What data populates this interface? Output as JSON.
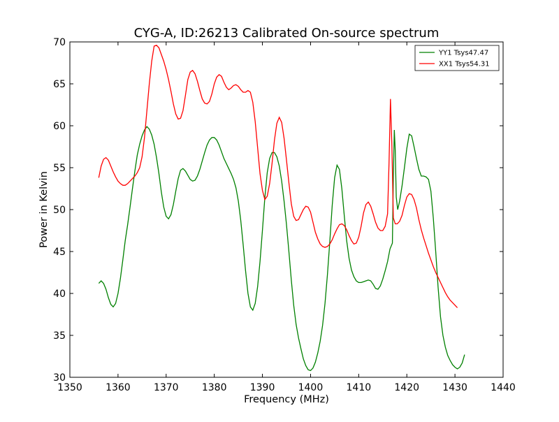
{
  "chart_data": {
    "type": "line",
    "title": "CYG-A, ID:26213 Calibrated On-source spectrum",
    "xlabel": "Frequency (MHz)",
    "ylabel": "Power in Kelvin",
    "xlim": [
      1350,
      1440
    ],
    "ylim": [
      30,
      70
    ],
    "xticks": [
      "1350",
      "1360",
      "1370",
      "1380",
      "1390",
      "1400",
      "1410",
      "1420",
      "1430",
      "1440"
    ],
    "yticks": [
      "30",
      "35",
      "40",
      "45",
      "50",
      "55",
      "60",
      "65",
      "70"
    ],
    "grid": false,
    "legend_position": "top-right",
    "series": [
      {
        "name": "YY1 Tsys47.47",
        "color": "#008000",
        "points": [
          [
            1356,
            41.2
          ],
          [
            1356.5,
            41.5
          ],
          [
            1357,
            41.2
          ],
          [
            1357.5,
            40.5
          ],
          [
            1358,
            39.5
          ],
          [
            1358.5,
            38.7
          ],
          [
            1359,
            38.4
          ],
          [
            1359.5,
            38.8
          ],
          [
            1360,
            40.0
          ],
          [
            1360.5,
            41.8
          ],
          [
            1361,
            44.0
          ],
          [
            1361.5,
            46.3
          ],
          [
            1362,
            48.2
          ],
          [
            1362.5,
            50.3
          ],
          [
            1363,
            52.5
          ],
          [
            1363.5,
            54.6
          ],
          [
            1364,
            56.5
          ],
          [
            1364.5,
            57.8
          ],
          [
            1365,
            58.8
          ],
          [
            1365.5,
            59.5
          ],
          [
            1366,
            59.9
          ],
          [
            1366.5,
            59.6
          ],
          [
            1367,
            58.9
          ],
          [
            1367.5,
            57.8
          ],
          [
            1368,
            56.2
          ],
          [
            1368.5,
            54.3
          ],
          [
            1369,
            52.1
          ],
          [
            1369.5,
            50.3
          ],
          [
            1370,
            49.2
          ],
          [
            1370.5,
            48.9
          ],
          [
            1371,
            49.4
          ],
          [
            1371.5,
            50.6
          ],
          [
            1372,
            52.2
          ],
          [
            1372.5,
            53.7
          ],
          [
            1373,
            54.7
          ],
          [
            1373.5,
            54.9
          ],
          [
            1374,
            54.6
          ],
          [
            1374.5,
            54.1
          ],
          [
            1375,
            53.6
          ],
          [
            1375.5,
            53.4
          ],
          [
            1376,
            53.5
          ],
          [
            1376.5,
            54.0
          ],
          [
            1377,
            54.8
          ],
          [
            1377.5,
            55.8
          ],
          [
            1378,
            56.8
          ],
          [
            1378.5,
            57.7
          ],
          [
            1379,
            58.3
          ],
          [
            1379.5,
            58.6
          ],
          [
            1380,
            58.6
          ],
          [
            1380.5,
            58.3
          ],
          [
            1381,
            57.7
          ],
          [
            1381.5,
            56.9
          ],
          [
            1382,
            56.1
          ],
          [
            1382.5,
            55.5
          ],
          [
            1383,
            54.9
          ],
          [
            1383.5,
            54.3
          ],
          [
            1384,
            53.6
          ],
          [
            1384.5,
            52.6
          ],
          [
            1385,
            51.0
          ],
          [
            1385.5,
            48.7
          ],
          [
            1386,
            45.8
          ],
          [
            1386.5,
            42.7
          ],
          [
            1387,
            40.0
          ],
          [
            1387.5,
            38.4
          ],
          [
            1388,
            38.0
          ],
          [
            1388.5,
            38.8
          ],
          [
            1389,
            40.8
          ],
          [
            1389.5,
            43.8
          ],
          [
            1390,
            47.5
          ],
          [
            1390.5,
            51.4
          ],
          [
            1391,
            54.4
          ],
          [
            1391.5,
            56.1
          ],
          [
            1392,
            56.8
          ],
          [
            1392.5,
            56.8
          ],
          [
            1393,
            56.3
          ],
          [
            1393.5,
            55.2
          ],
          [
            1394,
            53.4
          ],
          [
            1394.5,
            51.0
          ],
          [
            1395,
            48.2
          ],
          [
            1395.5,
            45.0
          ],
          [
            1396,
            41.6
          ],
          [
            1396.5,
            38.6
          ],
          [
            1397,
            36.3
          ],
          [
            1397.5,
            34.7
          ],
          [
            1398,
            33.4
          ],
          [
            1398.5,
            32.2
          ],
          [
            1399,
            31.4
          ],
          [
            1399.5,
            30.9
          ],
          [
            1400,
            30.8
          ],
          [
            1400.5,
            31.1
          ],
          [
            1401,
            31.8
          ],
          [
            1401.5,
            32.9
          ],
          [
            1402,
            34.3
          ],
          [
            1402.5,
            36.2
          ],
          [
            1403,
            38.8
          ],
          [
            1403.5,
            42.2
          ],
          [
            1404,
            46.2
          ],
          [
            1404.5,
            50.5
          ],
          [
            1405,
            53.8
          ],
          [
            1405.5,
            55.3
          ],
          [
            1406,
            54.8
          ],
          [
            1406.5,
            52.5
          ],
          [
            1407,
            49.3
          ],
          [
            1407.5,
            46.3
          ],
          [
            1408,
            44.2
          ],
          [
            1408.5,
            42.8
          ],
          [
            1409,
            42.0
          ],
          [
            1409.5,
            41.5
          ],
          [
            1410,
            41.3
          ],
          [
            1410.5,
            41.3
          ],
          [
            1411,
            41.4
          ],
          [
            1411.5,
            41.5
          ],
          [
            1412,
            41.6
          ],
          [
            1412.5,
            41.5
          ],
          [
            1413,
            41.1
          ],
          [
            1413.5,
            40.6
          ],
          [
            1414,
            40.5
          ],
          [
            1414.5,
            40.9
          ],
          [
            1415,
            41.7
          ],
          [
            1415.5,
            42.7
          ],
          [
            1416,
            43.8
          ],
          [
            1416.5,
            45.3
          ],
          [
            1417,
            46.0
          ],
          [
            1417.2,
            54.0
          ],
          [
            1417.4,
            59.5
          ],
          [
            1417.6,
            57.0
          ],
          [
            1417.8,
            51.5
          ],
          [
            1418.1,
            50.0
          ],
          [
            1418.5,
            51.0
          ],
          [
            1419,
            52.8
          ],
          [
            1419.5,
            55.0
          ],
          [
            1420,
            57.3
          ],
          [
            1420.5,
            59.0
          ],
          [
            1421,
            58.8
          ],
          [
            1421.5,
            57.5
          ],
          [
            1422,
            56.1
          ],
          [
            1422.5,
            54.8
          ],
          [
            1423,
            54.0
          ],
          [
            1423.5,
            54.0
          ],
          [
            1424,
            53.9
          ],
          [
            1424.5,
            53.6
          ],
          [
            1425,
            52.2
          ],
          [
            1425.5,
            49.0
          ],
          [
            1426,
            45.0
          ],
          [
            1426.5,
            40.7
          ],
          [
            1427,
            37.2
          ],
          [
            1427.5,
            35.0
          ],
          [
            1428,
            33.6
          ],
          [
            1428.5,
            32.6
          ],
          [
            1429,
            32.0
          ],
          [
            1429.5,
            31.5
          ],
          [
            1430,
            31.2
          ],
          [
            1430.5,
            31.0
          ],
          [
            1431,
            31.2
          ],
          [
            1431.5,
            31.7
          ],
          [
            1432,
            32.7
          ]
        ]
      },
      {
        "name": "XX1 Tsys54.31",
        "color": "#ff0000",
        "points": [
          [
            1356,
            53.8
          ],
          [
            1356.5,
            55.2
          ],
          [
            1357,
            56.0
          ],
          [
            1357.5,
            56.2
          ],
          [
            1358,
            55.9
          ],
          [
            1358.5,
            55.2
          ],
          [
            1359,
            54.5
          ],
          [
            1359.5,
            53.9
          ],
          [
            1360,
            53.4
          ],
          [
            1360.5,
            53.1
          ],
          [
            1361,
            52.9
          ],
          [
            1361.5,
            52.9
          ],
          [
            1362,
            53.1
          ],
          [
            1362.5,
            53.4
          ],
          [
            1363,
            53.7
          ],
          [
            1363.5,
            54.0
          ],
          [
            1364,
            54.4
          ],
          [
            1364.5,
            55.0
          ],
          [
            1365,
            56.3
          ],
          [
            1365.5,
            58.6
          ],
          [
            1366,
            61.8
          ],
          [
            1366.5,
            65.0
          ],
          [
            1367,
            67.7
          ],
          [
            1367.5,
            69.5
          ],
          [
            1368,
            69.6
          ],
          [
            1368.5,
            69.3
          ],
          [
            1369,
            68.5
          ],
          [
            1369.5,
            67.7
          ],
          [
            1370,
            66.7
          ],
          [
            1370.5,
            65.5
          ],
          [
            1371,
            64.1
          ],
          [
            1371.5,
            62.6
          ],
          [
            1372,
            61.4
          ],
          [
            1372.5,
            60.8
          ],
          [
            1373,
            60.9
          ],
          [
            1373.5,
            61.8
          ],
          [
            1374,
            63.6
          ],
          [
            1374.5,
            65.5
          ],
          [
            1375,
            66.4
          ],
          [
            1375.5,
            66.6
          ],
          [
            1376,
            66.2
          ],
          [
            1376.5,
            65.3
          ],
          [
            1377,
            64.2
          ],
          [
            1377.5,
            63.2
          ],
          [
            1378,
            62.7
          ],
          [
            1378.5,
            62.6
          ],
          [
            1379,
            62.9
          ],
          [
            1379.5,
            63.8
          ],
          [
            1380,
            65.0
          ],
          [
            1380.5,
            65.8
          ],
          [
            1381,
            66.1
          ],
          [
            1381.5,
            65.9
          ],
          [
            1382,
            65.2
          ],
          [
            1382.5,
            64.6
          ],
          [
            1383,
            64.3
          ],
          [
            1383.5,
            64.5
          ],
          [
            1384,
            64.8
          ],
          [
            1384.5,
            64.9
          ],
          [
            1385,
            64.7
          ],
          [
            1385.5,
            64.3
          ],
          [
            1386,
            64.0
          ],
          [
            1386.5,
            64.0
          ],
          [
            1387,
            64.2
          ],
          [
            1387.5,
            64.0
          ],
          [
            1388,
            62.8
          ],
          [
            1388.5,
            60.5
          ],
          [
            1389,
            57.4
          ],
          [
            1389.5,
            54.3
          ],
          [
            1390,
            52.3
          ],
          [
            1390.5,
            51.2
          ],
          [
            1391,
            51.6
          ],
          [
            1391.5,
            53.1
          ],
          [
            1392,
            55.5
          ],
          [
            1392.5,
            58.3
          ],
          [
            1393,
            60.3
          ],
          [
            1393.5,
            61.0
          ],
          [
            1394,
            60.4
          ],
          [
            1394.5,
            58.5
          ],
          [
            1395,
            55.9
          ],
          [
            1395.5,
            53.2
          ],
          [
            1396,
            50.7
          ],
          [
            1396.5,
            49.2
          ],
          [
            1397,
            48.7
          ],
          [
            1397.5,
            48.8
          ],
          [
            1398,
            49.4
          ],
          [
            1398.5,
            50.0
          ],
          [
            1399,
            50.4
          ],
          [
            1399.5,
            50.3
          ],
          [
            1400,
            49.7
          ],
          [
            1400.5,
            48.5
          ],
          [
            1401,
            47.3
          ],
          [
            1401.5,
            46.5
          ],
          [
            1402,
            45.9
          ],
          [
            1402.5,
            45.6
          ],
          [
            1403,
            45.5
          ],
          [
            1403.5,
            45.6
          ],
          [
            1404,
            45.9
          ],
          [
            1404.5,
            46.4
          ],
          [
            1405,
            47.1
          ],
          [
            1405.5,
            47.7
          ],
          [
            1406,
            48.2
          ],
          [
            1406.5,
            48.3
          ],
          [
            1407,
            48.1
          ],
          [
            1407.5,
            47.6
          ],
          [
            1408,
            46.9
          ],
          [
            1408.5,
            46.3
          ],
          [
            1409,
            45.9
          ],
          [
            1409.5,
            46.0
          ],
          [
            1410,
            46.7
          ],
          [
            1410.5,
            48.0
          ],
          [
            1411,
            49.6
          ],
          [
            1411.5,
            50.6
          ],
          [
            1412,
            50.9
          ],
          [
            1412.5,
            50.4
          ],
          [
            1413,
            49.5
          ],
          [
            1413.5,
            48.5
          ],
          [
            1414,
            47.8
          ],
          [
            1414.5,
            47.5
          ],
          [
            1415,
            47.5
          ],
          [
            1415.5,
            48.0
          ],
          [
            1416,
            49.5
          ],
          [
            1416.3,
            55.5
          ],
          [
            1416.6,
            63.2
          ],
          [
            1416.9,
            57.5
          ],
          [
            1417.2,
            49.0
          ],
          [
            1417.6,
            48.3
          ],
          [
            1418,
            48.3
          ],
          [
            1418.5,
            48.6
          ],
          [
            1419,
            49.3
          ],
          [
            1419.5,
            50.5
          ],
          [
            1420,
            51.5
          ],
          [
            1420.5,
            51.9
          ],
          [
            1421,
            51.8
          ],
          [
            1421.5,
            51.2
          ],
          [
            1422,
            50.2
          ],
          [
            1422.5,
            48.8
          ],
          [
            1423,
            47.6
          ],
          [
            1423.5,
            46.6
          ],
          [
            1424,
            45.7
          ],
          [
            1424.5,
            44.8
          ],
          [
            1425,
            44.0
          ],
          [
            1425.5,
            43.2
          ],
          [
            1426,
            42.5
          ],
          [
            1426.5,
            41.9
          ],
          [
            1427,
            41.3
          ],
          [
            1427.5,
            40.7
          ],
          [
            1428,
            40.1
          ],
          [
            1428.5,
            39.6
          ],
          [
            1429,
            39.2
          ],
          [
            1429.5,
            38.9
          ],
          [
            1430,
            38.6
          ],
          [
            1430.5,
            38.3
          ]
        ]
      }
    ]
  }
}
